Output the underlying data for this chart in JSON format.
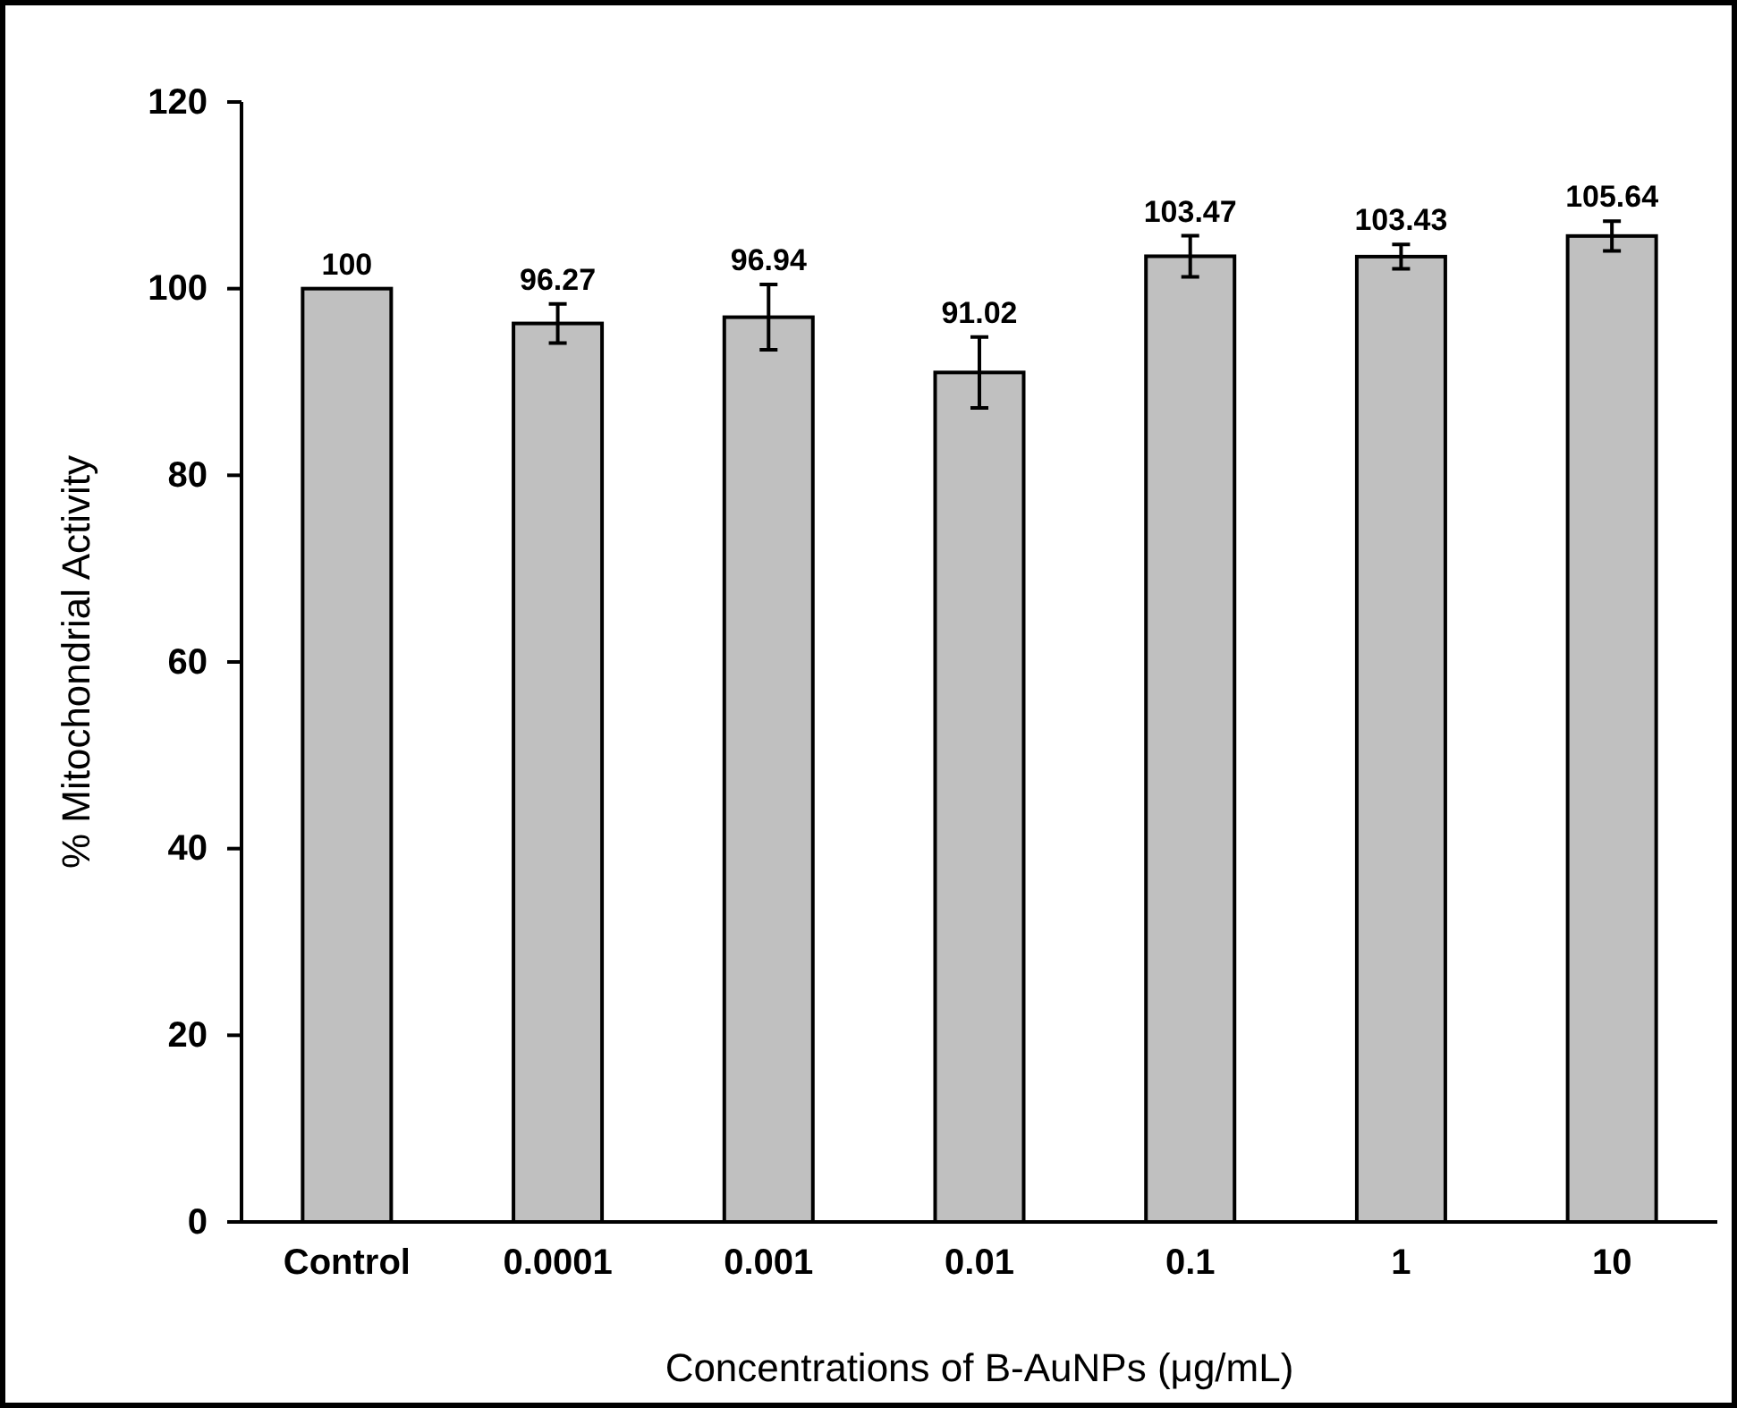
{
  "chart_data": {
    "type": "bar",
    "xlabel": "Concentrations of B-AuNPs (μg/mL)",
    "ylabel": "% Mitochondrial Activity",
    "categories": [
      "Control",
      "0.0001",
      "0.001",
      "0.01",
      "0.1",
      "1",
      "10"
    ],
    "values": [
      100,
      96.27,
      96.94,
      91.02,
      103.47,
      103.43,
      105.64
    ],
    "errors": [
      null,
      2.1,
      3.5,
      3.8,
      2.2,
      1.3,
      1.6
    ],
    "color": "#c0c0c0",
    "data_labels": true,
    "ylim": [
      0,
      120
    ],
    "yticks": [
      0,
      20,
      40,
      60,
      80,
      100,
      120
    ],
    "grid": false
  }
}
